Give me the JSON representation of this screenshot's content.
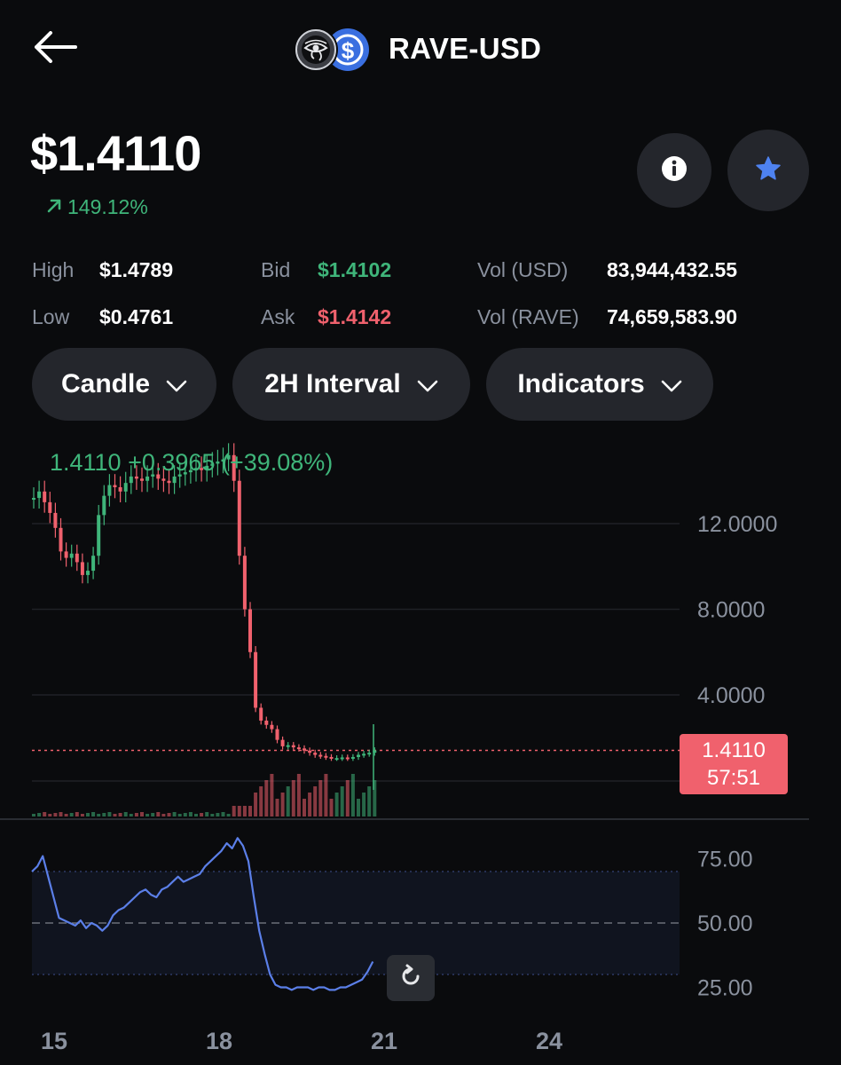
{
  "header": {
    "title": "RAVE-USD",
    "back_icon": "arrow-left-icon",
    "logo_icons": [
      "eye-of-horus-icon",
      "dollar-coin-icon"
    ]
  },
  "price": {
    "current": "$1.4110",
    "change": "149.12%",
    "change_icon": "arrow-up-right-icon"
  },
  "actions": {
    "info_icon": "info-icon",
    "watchlist_icon": "star-icon"
  },
  "stats": {
    "high_label": "High",
    "high_value": "$1.4789",
    "low_label": "Low",
    "low_value": "$0.4761",
    "bid_label": "Bid",
    "bid_value": "$1.4102",
    "ask_label": "Ask",
    "ask_value": "$1.4142",
    "vol_usd_label": "Vol (USD)",
    "vol_usd_value": "83,944,432.55",
    "vol_rave_label": "Vol (RAVE)",
    "vol_rave_value": "74,659,583.90"
  },
  "controls": {
    "chart_type": "Candle",
    "interval": "2H Interval",
    "indicators": "Indicators"
  },
  "chart": {
    "ohlc_text": "1.4110  +0.3965 (+39.08%)",
    "price_ticks": [
      "12.0000",
      "8.0000",
      "4.0000"
    ],
    "current_price": "1.4110",
    "countdown": "57:51",
    "rsi_ticks": [
      "75.00",
      "50.00",
      "25.00"
    ],
    "date_ticks": [
      "15",
      "18",
      "21",
      "24"
    ],
    "reset_icon": "reset-zoom-icon",
    "colors": {
      "up": "#3fb57a",
      "down": "#f0616d",
      "rsi": "#5b7fe8"
    }
  },
  "chart_data": {
    "type": "candlestick",
    "y_ticks": [
      12,
      8,
      4
    ],
    "rsi_ticks": [
      75,
      50,
      25
    ],
    "x_ticks": [
      "15",
      "18",
      "21",
      "24"
    ],
    "current_price": 1.411,
    "approx_close_series": [
      13.2,
      13.5,
      13.0,
      12.5,
      11.8,
      10.7,
      10.4,
      10.6,
      10.2,
      9.6,
      9.8,
      10.5,
      12.4,
      13.3,
      13.8,
      13.7,
      13.5,
      13.9,
      14.2,
      14.1,
      14.0,
      14.2,
      14.3,
      14.1,
      14.0,
      13.9,
      14.2,
      14.3,
      14.4,
      14.5,
      14.6,
      14.5,
      14.7,
      14.8,
      14.9,
      15.0,
      15.2,
      14.0,
      10.5,
      8.0,
      6.0,
      3.4,
      2.8,
      2.6,
      2.4,
      1.9,
      1.6,
      1.65,
      1.55,
      1.5,
      1.4,
      1.3,
      1.2,
      1.15,
      1.1,
      1.05,
      1.05,
      1.08,
      1.05,
      1.1,
      1.2,
      1.25,
      1.3,
      1.41
    ],
    "rsi_series": [
      70,
      72,
      76,
      68,
      60,
      52,
      51,
      50,
      49,
      51,
      48,
      50,
      49,
      47,
      49,
      53,
      55,
      56,
      58,
      60,
      62,
      63,
      61,
      60,
      63,
      64,
      66,
      68,
      66,
      67,
      68,
      69,
      72,
      74,
      76,
      78,
      81,
      79,
      83,
      80,
      74,
      60,
      47,
      38,
      30,
      26,
      25,
      25,
      24,
      25,
      25,
      25,
      24,
      25,
      25,
      24,
      24,
      25,
      25,
      26,
      27,
      28,
      31,
      35
    ]
  }
}
